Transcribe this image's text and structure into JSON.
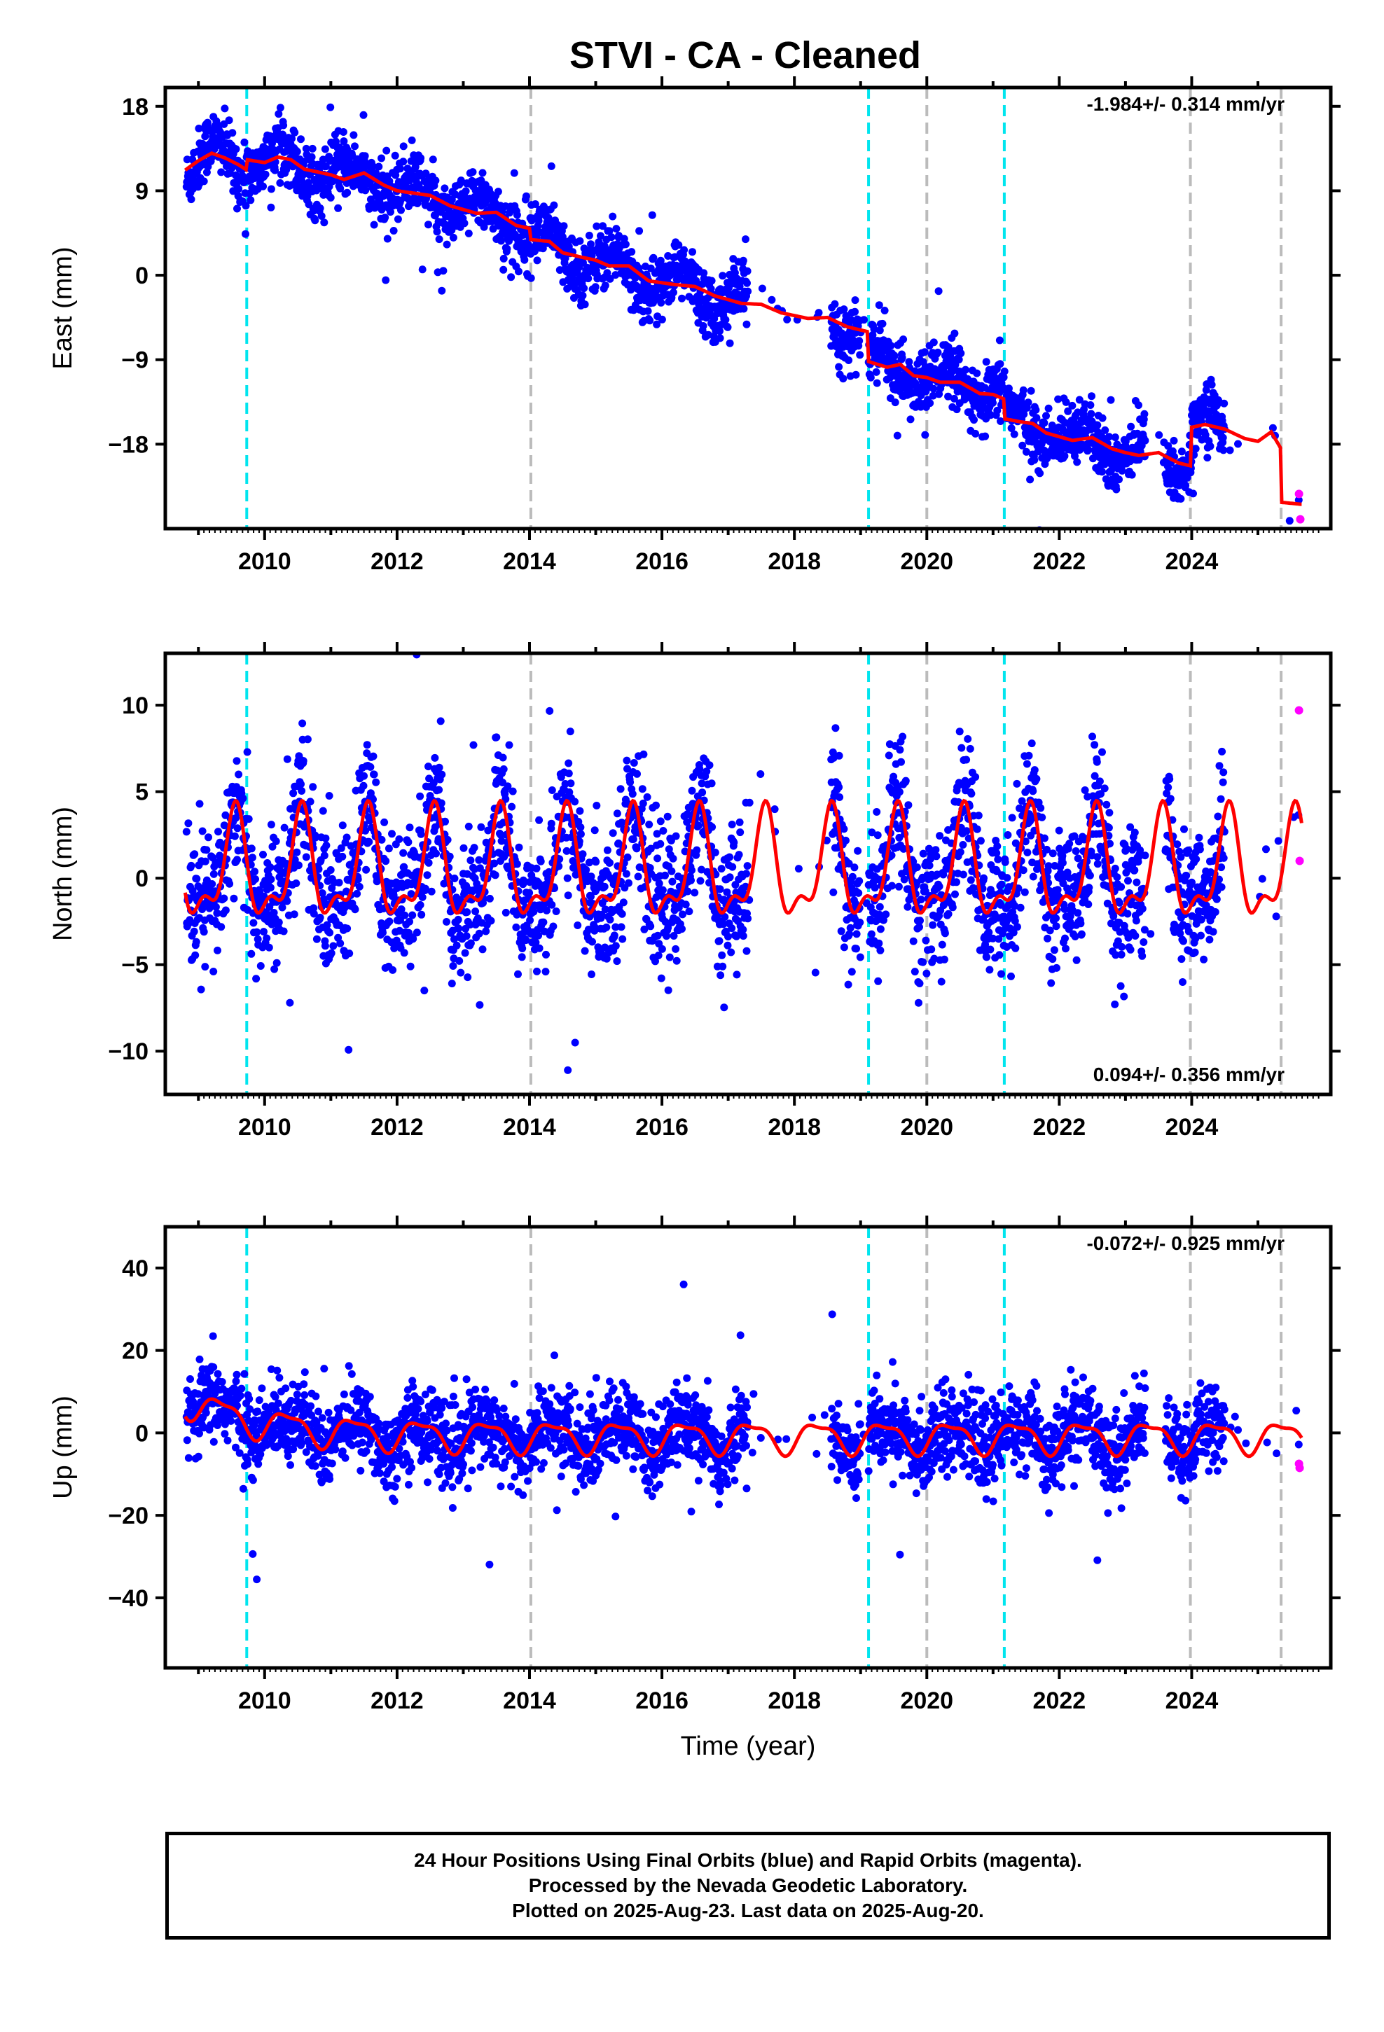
{
  "chart_data": {
    "title": "STVI  - CA - Cleaned",
    "xlabel": "Time (year)",
    "xlim": [
      2008.5,
      2026.1
    ],
    "x_ticks": [
      "2010",
      "2012",
      "2014",
      "2016",
      "2018",
      "2020",
      "2022",
      "2024"
    ],
    "colors": {
      "final": "#0000ff",
      "rapid": "#ff00ff",
      "model": "#ff0000",
      "cyan_lines": "#00e5ee",
      "gray_lines": "#bbbbbb"
    },
    "cyan_lines": [
      2009.73,
      2019.12,
      2021.17
    ],
    "gray_lines": [
      2014.02,
      2020.0,
      2023.98,
      2025.35
    ],
    "data_gaps": [
      [
        2017.3,
        2018.55
      ],
      [
        2019.0,
        2019.12
      ],
      [
        2023.3,
        2023.6
      ],
      [
        2024.5,
        2025.65
      ]
    ],
    "panels": [
      {
        "type": "scatter",
        "ylabel": "East (mm)",
        "ylim": [
          -27,
          20
        ],
        "y_ticks": [
          "18",
          "9",
          "0",
          "−9",
          "−18"
        ],
        "y_tick_values": [
          18,
          9,
          0,
          -9,
          -18
        ],
        "rate": "-1.984+/- 0.314 mm/yr",
        "rate_position": "top-right",
        "model_line": [
          [
            2008.8,
            11.2
          ],
          [
            2009.0,
            12.2
          ],
          [
            2009.2,
            13.0
          ],
          [
            2009.4,
            12.5
          ],
          [
            2009.6,
            11.8
          ],
          [
            2009.73,
            11.2
          ],
          [
            2009.74,
            12.3
          ],
          [
            2010.0,
            12.0
          ],
          [
            2010.2,
            12.6
          ],
          [
            2010.4,
            12.3
          ],
          [
            2010.6,
            11.3
          ],
          [
            2011.0,
            10.7
          ],
          [
            2011.2,
            10.2
          ],
          [
            2011.5,
            10.9
          ],
          [
            2011.8,
            9.6
          ],
          [
            2012.0,
            9.0
          ],
          [
            2012.2,
            8.8
          ],
          [
            2012.5,
            8.5
          ],
          [
            2012.8,
            7.4
          ],
          [
            2013.0,
            7.0
          ],
          [
            2013.2,
            6.6
          ],
          [
            2013.5,
            6.7
          ],
          [
            2013.8,
            5.3
          ],
          [
            2014.0,
            5.0
          ],
          [
            2014.02,
            3.8
          ],
          [
            2014.3,
            3.6
          ],
          [
            2014.5,
            2.4
          ],
          [
            2014.8,
            1.9
          ],
          [
            2015.0,
            1.6
          ],
          [
            2015.2,
            1.0
          ],
          [
            2015.5,
            1.0
          ],
          [
            2015.8,
            -0.6
          ],
          [
            2016.0,
            -0.8
          ],
          [
            2016.2,
            -1.0
          ],
          [
            2016.5,
            -1.2
          ],
          [
            2016.8,
            -2.2
          ],
          [
            2017.0,
            -2.6
          ],
          [
            2017.2,
            -3.0
          ],
          [
            2017.5,
            -3.1
          ],
          [
            2017.8,
            -4.0
          ],
          [
            2018.0,
            -4.3
          ],
          [
            2018.2,
            -4.6
          ],
          [
            2018.5,
            -4.5
          ],
          [
            2018.8,
            -5.5
          ],
          [
            2019.1,
            -6.0
          ],
          [
            2019.12,
            -9.2
          ],
          [
            2019.4,
            -9.8
          ],
          [
            2019.6,
            -9.5
          ],
          [
            2019.8,
            -10.7
          ],
          [
            2020.0,
            -10.9
          ],
          [
            2020.2,
            -11.4
          ],
          [
            2020.5,
            -11.4
          ],
          [
            2020.8,
            -12.6
          ],
          [
            2021.0,
            -12.7
          ],
          [
            2021.17,
            -13.2
          ],
          [
            2021.18,
            -15.3
          ],
          [
            2021.4,
            -15.6
          ],
          [
            2021.6,
            -15.8
          ],
          [
            2021.8,
            -16.8
          ],
          [
            2022.0,
            -17.2
          ],
          [
            2022.2,
            -17.6
          ],
          [
            2022.5,
            -17.3
          ],
          [
            2022.8,
            -18.5
          ],
          [
            2023.0,
            -18.9
          ],
          [
            2023.2,
            -19.2
          ],
          [
            2023.5,
            -18.9
          ],
          [
            2023.8,
            -20.0
          ],
          [
            2023.98,
            -20.3
          ],
          [
            2024.0,
            -16.2
          ],
          [
            2024.2,
            -15.9
          ],
          [
            2024.5,
            -16.4
          ],
          [
            2024.8,
            -17.4
          ],
          [
            2025.0,
            -17.7
          ],
          [
            2025.2,
            -16.7
          ],
          [
            2025.35,
            -18.5
          ],
          [
            2025.36,
            -24.2
          ],
          [
            2025.65,
            -24.4
          ]
        ],
        "rapid_points": [
          [
            2025.62,
            -23.3
          ],
          [
            2025.64,
            -26.0
          ]
        ]
      },
      {
        "type": "scatter",
        "ylabel": "North (mm)",
        "ylim": [
          -12.5,
          13
        ],
        "y_ticks": [
          "10",
          "5",
          "0",
          "−5",
          "−10"
        ],
        "y_tick_values": [
          10,
          5,
          0,
          -5,
          -10
        ],
        "rate": "0.094+/- 0.356 mm/yr",
        "rate_position": "bottom-right",
        "model_line": "seasonal oscillation, amplitude about 3 mm, peaks near mid-year",
        "rapid_points": [
          [
            2025.62,
            9.7
          ],
          [
            2025.63,
            1.0
          ]
        ]
      },
      {
        "type": "scatter",
        "ylabel": "Up (mm)",
        "ylim": [
          -57,
          50
        ],
        "y_ticks": [
          "40",
          "20",
          "0",
          "−20",
          "−40"
        ],
        "y_tick_values": [
          40,
          20,
          0,
          -20,
          -40
        ],
        "rate": "-0.072+/- 0.925 mm/yr",
        "rate_position": "top-right",
        "model_line": "seasonal oscillation, amplitude about 4 mm, decaying initial offset from about 10 mm",
        "rapid_points": [
          [
            2025.62,
            -7.5
          ],
          [
            2025.63,
            -8.5
          ]
        ]
      }
    ]
  },
  "footer": {
    "line1": "24 Hour Positions Using Final Orbits (blue) and Rapid Orbits (magenta).",
    "line2": "Processed by the Nevada Geodetic Laboratory.",
    "line3": "Plotted on 2025-Aug-23. Last data on 2025-Aug-20."
  }
}
